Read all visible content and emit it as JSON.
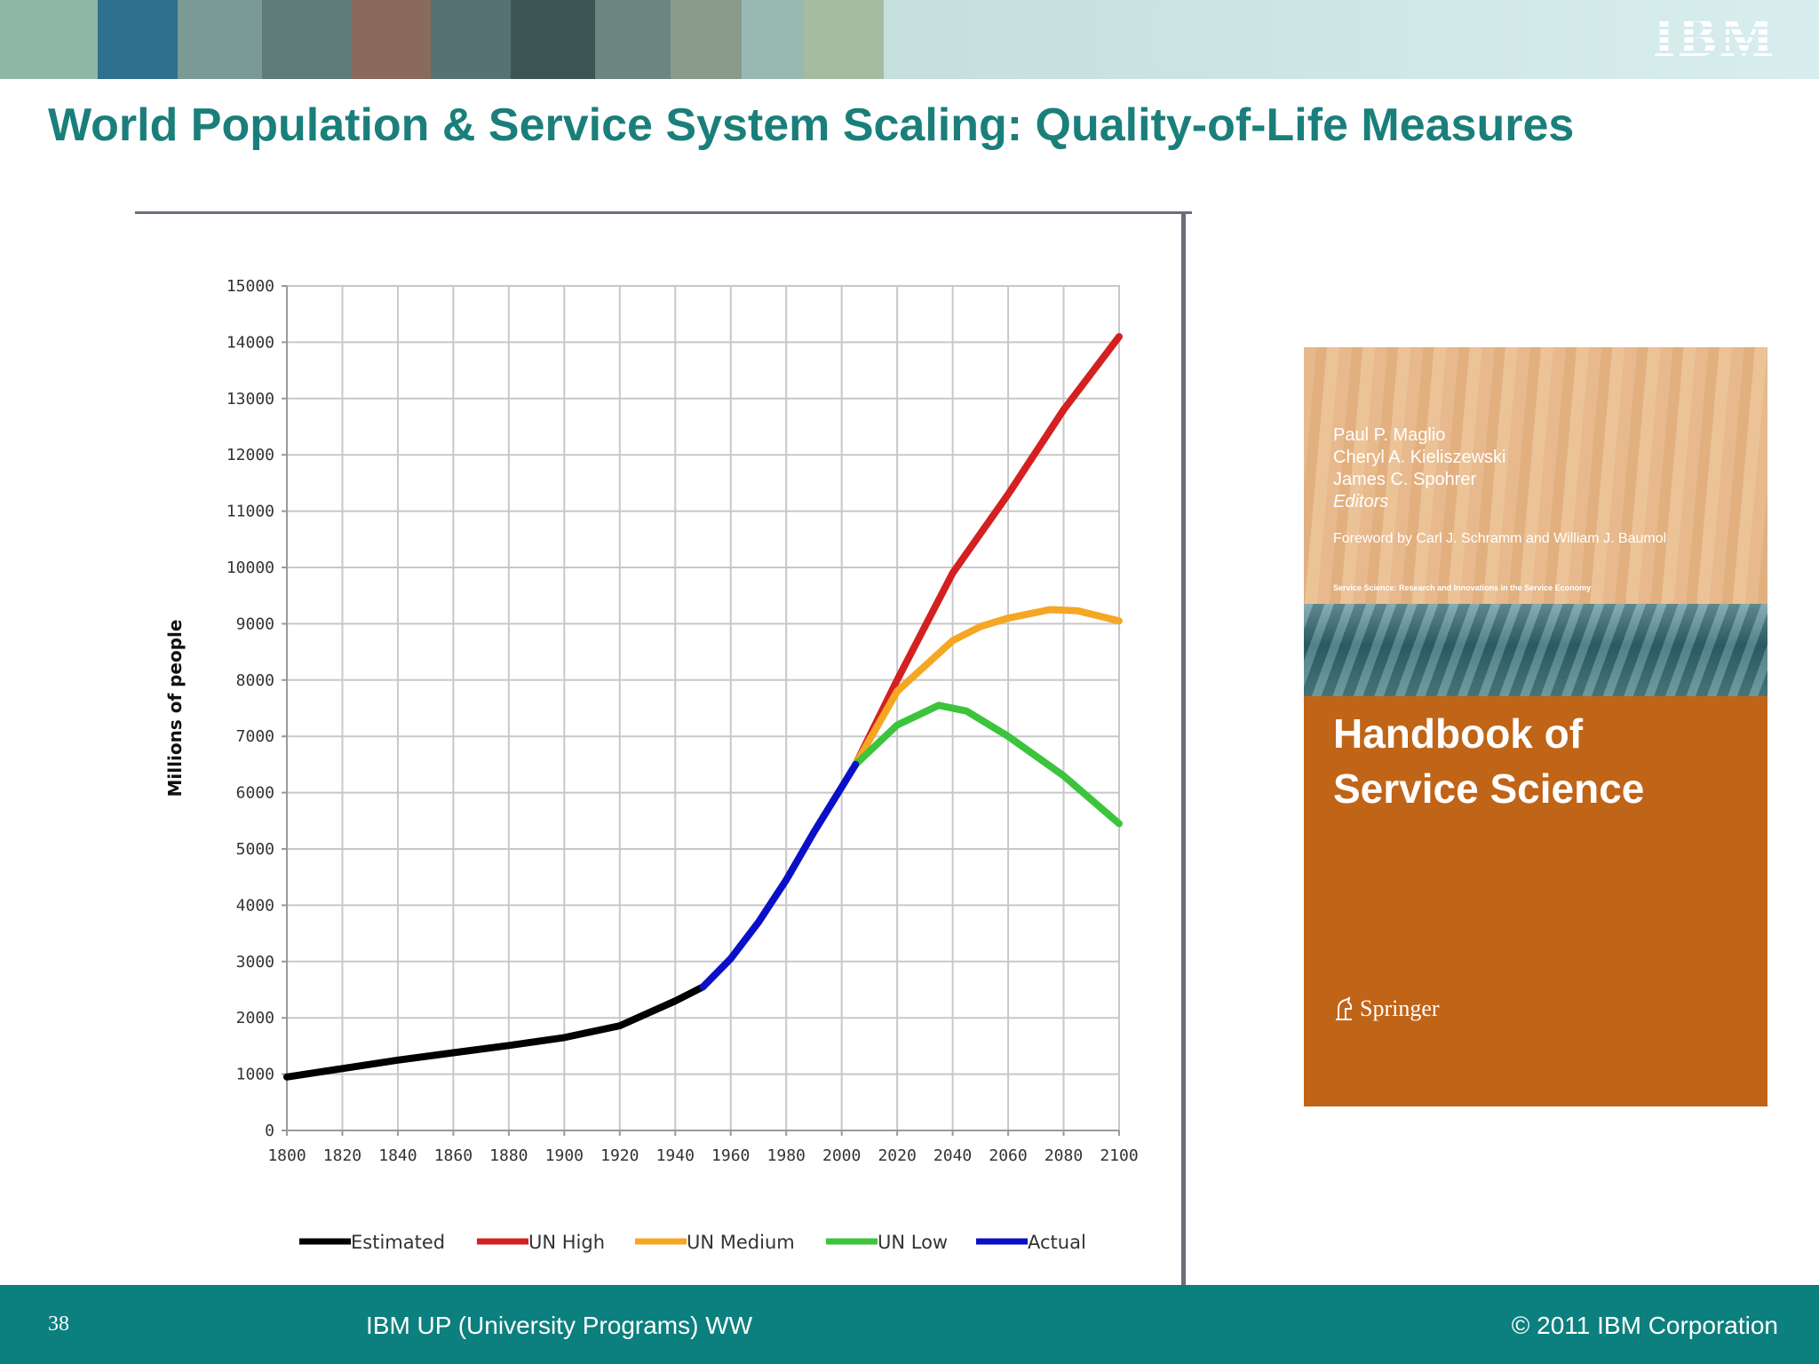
{
  "slide": {
    "title": "World Population & Service System Scaling: Quality-of-Life Measures",
    "page_number": "38",
    "footer_center": "IBM UP (University Programs) WW",
    "footer_right": "© 2011 IBM Corporation",
    "logo_text": "IBM"
  },
  "banner": {
    "tiles": [
      {
        "icon": "tree-illustration",
        "color": "#8fb7a6"
      },
      {
        "icon": "circular-diagram",
        "color": "#2f6f8f"
      },
      {
        "icon": "photo-tile",
        "color": "#7a9a96"
      },
      {
        "icon": "room-photo",
        "color": "#5f7c7a"
      },
      {
        "icon": "building-photo",
        "color": "#8a6a5a"
      },
      {
        "icon": "photo-tile",
        "color": "#567272"
      },
      {
        "icon": "dark-panel",
        "color": "#3c5654"
      },
      {
        "icon": "city-photo",
        "color": "#6b8580"
      },
      {
        "icon": "map-photo",
        "color": "#8a9a8a"
      },
      {
        "icon": "teal-panel",
        "color": "#9ab8b2"
      },
      {
        "icon": "hand-photo",
        "color": "#a7bba0"
      }
    ]
  },
  "book": {
    "editors": [
      "Paul P. Maglio",
      "Cheryl A. Kieliszewski",
      "James C. Spohrer"
    ],
    "editors_role": "Editors",
    "foreword": "Foreword by Carl J. Schramm and William J. Baumol",
    "series": "Service Science: Research and Innovations in the Service Economy",
    "title_line1": "Handbook of",
    "title_line2": "Service Science",
    "publisher": "Springer",
    "publisher_icon": "springer-horse-icon"
  },
  "chart_data": {
    "type": "line",
    "ylabel": "Millions of people",
    "xlabel": "",
    "xlim": [
      1800,
      2100
    ],
    "ylim": [
      0,
      15000
    ],
    "xticks": [
      1800,
      1820,
      1840,
      1860,
      1880,
      1900,
      1920,
      1940,
      1960,
      1980,
      2000,
      2020,
      2040,
      2060,
      2080,
      2100
    ],
    "yticks": [
      0,
      1000,
      2000,
      3000,
      4000,
      5000,
      6000,
      7000,
      8000,
      9000,
      10000,
      11000,
      12000,
      13000,
      14000,
      15000
    ],
    "grid": true,
    "legend_position": "bottom",
    "series": [
      {
        "name": "Estimated",
        "color": "#000000",
        "points": [
          [
            1800,
            950
          ],
          [
            1820,
            1100
          ],
          [
            1840,
            1250
          ],
          [
            1860,
            1380
          ],
          [
            1880,
            1510
          ],
          [
            1900,
            1650
          ],
          [
            1920,
            1860
          ],
          [
            1940,
            2300
          ],
          [
            1950,
            2550
          ]
        ]
      },
      {
        "name": "UN High",
        "color": "#d42020",
        "points": [
          [
            2005,
            6500
          ],
          [
            2020,
            8000
          ],
          [
            2040,
            9900
          ],
          [
            2050,
            10600
          ],
          [
            2060,
            11300
          ],
          [
            2080,
            12800
          ],
          [
            2100,
            14100
          ]
        ]
      },
      {
        "name": "UN Medium",
        "color": "#f5a623",
        "points": [
          [
            2005,
            6500
          ],
          [
            2020,
            7800
          ],
          [
            2040,
            8700
          ],
          [
            2050,
            8950
          ],
          [
            2060,
            9100
          ],
          [
            2075,
            9250
          ],
          [
            2085,
            9230
          ],
          [
            2100,
            9050
          ]
        ]
      },
      {
        "name": "UN Low",
        "color": "#3cc43c",
        "points": [
          [
            2005,
            6500
          ],
          [
            2020,
            7200
          ],
          [
            2035,
            7550
          ],
          [
            2045,
            7450
          ],
          [
            2060,
            7000
          ],
          [
            2080,
            6300
          ],
          [
            2100,
            5450
          ]
        ]
      },
      {
        "name": "Actual",
        "color": "#0a10c8",
        "points": [
          [
            1950,
            2550
          ],
          [
            1960,
            3050
          ],
          [
            1970,
            3700
          ],
          [
            1980,
            4450
          ],
          [
            1990,
            5300
          ],
          [
            2000,
            6100
          ],
          [
            2005,
            6500
          ]
        ]
      }
    ]
  }
}
